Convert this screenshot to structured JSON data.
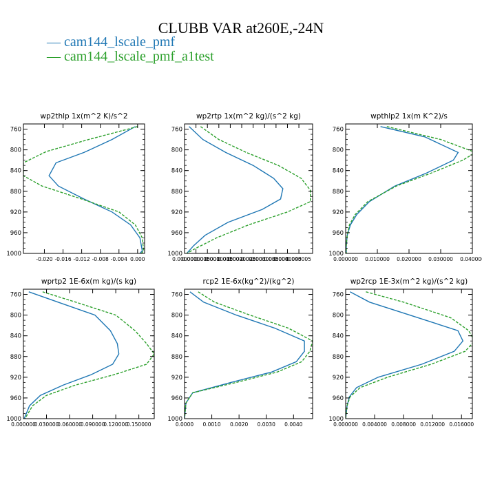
{
  "figure": {
    "title": "CLUBB VAR at260E,-24N",
    "legend": [
      {
        "label": "cam144_lscale_pmf",
        "color": "#1f77b4"
      },
      {
        "label": "cam144_lscale_pmf_a1test",
        "color": "#2ca02c"
      }
    ]
  },
  "chart_data": [
    {
      "type": "line",
      "title": "wp2thlp   1x(m^2 K)/s^2",
      "xlim": [
        -0.0245,
        0.0015
      ],
      "ylim": [
        1000,
        750
      ],
      "yticks": [
        760,
        800,
        840,
        880,
        920,
        960,
        1000
      ],
      "xticks": [
        -0.02,
        -0.016,
        -0.012,
        -0.008,
        -0.004,
        0.0
      ],
      "xtick_labels": [
        "-0.020",
        "-0.016",
        "-0.012",
        "-0.008",
        "-0.004",
        "0.000"
      ],
      "series": [
        {
          "name": "cam144_lscale_pmf",
          "color": "#1f77b4",
          "dashed": false,
          "y": [
            755,
            780,
            805,
            825,
            850,
            870,
            895,
            920,
            945,
            970,
            995,
            1000
          ],
          "x": [
            -0.0005,
            -0.0055,
            -0.0115,
            -0.0175,
            -0.019,
            -0.017,
            -0.0115,
            -0.0055,
            -0.0015,
            0.0005,
            0.001,
            0.0005
          ]
        },
        {
          "name": "cam144_lscale_pmf_a1test",
          "color": "#2ca02c",
          "dashed": true,
          "y": [
            755,
            780,
            803,
            825,
            850,
            870,
            895,
            920,
            945,
            970,
            995,
            1000
          ],
          "x": [
            0.0,
            -0.0105,
            -0.0195,
            -0.0245,
            -0.0245,
            -0.0205,
            -0.012,
            -0.004,
            -0.0005,
            0.001,
            0.0013,
            0.0008
          ]
        }
      ]
    },
    {
      "type": "line",
      "title": "wp2rtp   1x(m^2 kg)/(s^2 kg)",
      "xlim": [
        0,
        5.6e-06
      ],
      "ylim": [
        1000,
        750
      ],
      "yticks": [
        760,
        800,
        840,
        880,
        920,
        960,
        1000
      ],
      "xticks": [
        0,
        5e-07,
        1e-06,
        1.5e-06,
        2e-06,
        2.5e-06,
        3e-06,
        3.5e-06,
        4e-06,
        4.5e-06,
        5e-06
      ],
      "xtick_labels": [
        "0.000000",
        "0.0000005",
        "0.000001",
        "0.0000015",
        "0.000002",
        "0.0000025",
        "0.000003",
        "0.0000035",
        "0.000004",
        "0.0000045",
        "0.000005"
      ],
      "series": [
        {
          "name": "cam144_lscale_pmf",
          "color": "#1f77b4",
          "dashed": false,
          "y": [
            755,
            780,
            805,
            830,
            855,
            875,
            895,
            915,
            940,
            965,
            985,
            1000
          ],
          "x": [
            2e-07,
            8e-07,
            1.8e-06,
            3e-06,
            3.9e-06,
            4.3e-06,
            4.2e-06,
            3.4e-06,
            1.9e-06,
            9e-07,
            4e-07,
            1e-07
          ]
        },
        {
          "name": "cam144_lscale_pmf_a1test",
          "color": "#2ca02c",
          "dashed": true,
          "y": [
            755,
            780,
            805,
            830,
            855,
            878,
            900,
            920,
            945,
            970,
            990,
            1000
          ],
          "x": [
            7e-07,
            1.5e-06,
            2.7e-06,
            4.1e-06,
            5.1e-06,
            5.5e-06,
            5.5e-06,
            4.5e-06,
            2.8e-06,
            1.4e-06,
            5e-07,
            1e-07
          ]
        }
      ]
    },
    {
      "type": "line",
      "title": "wpthlp2   1x(m K^2)/s",
      "xlim": [
        0,
        0.04
      ],
      "ylim": [
        1000,
        750
      ],
      "yticks": [
        760,
        800,
        840,
        880,
        920,
        960,
        1000
      ],
      "xticks": [
        0,
        0.01,
        0.02,
        0.03,
        0.04
      ],
      "xtick_labels": [
        "0.000000",
        "0.010000",
        "0.020000",
        "0.030000",
        "0.040000"
      ],
      "series": [
        {
          "name": "cam144_lscale_pmf",
          "color": "#1f77b4",
          "dashed": false,
          "y": [
            755,
            775,
            805,
            820,
            845,
            870,
            900,
            925,
            945,
            965,
            985,
            1000
          ],
          "x": [
            0.011,
            0.025,
            0.0355,
            0.034,
            0.0255,
            0.0155,
            0.0075,
            0.0035,
            0.0015,
            0.0005,
            0.0002,
            0.0002
          ]
        },
        {
          "name": "cam144_lscale_pmf_a1test",
          "color": "#2ca02c",
          "dashed": true,
          "y": [
            755,
            780,
            805,
            820,
            845,
            870,
            900,
            925,
            945,
            965,
            985,
            1000
          ],
          "x": [
            0.013,
            0.03,
            0.041,
            0.037,
            0.027,
            0.016,
            0.007,
            0.003,
            0.0012,
            0.0005,
            0.0002,
            0.0002
          ]
        }
      ]
    },
    {
      "type": "line",
      "title": "wprtp2   1E-6x(m kg)/(s kg)",
      "xlim": [
        0,
        0.17
      ],
      "ylim": [
        1000,
        750
      ],
      "yticks": [
        760,
        800,
        840,
        880,
        920,
        960,
        1000
      ],
      "xticks": [
        0,
        0.03,
        0.06,
        0.09,
        0.12,
        0.15
      ],
      "xtick_labels": [
        "0.000000",
        "0.030000",
        "0.060000",
        "0.090000",
        "0.120000",
        "0.150000"
      ],
      "series": [
        {
          "name": "cam144_lscale_pmf",
          "color": "#1f77b4",
          "dashed": false,
          "y": [
            755,
            775,
            800,
            830,
            855,
            875,
            895,
            915,
            935,
            955,
            975,
            1000
          ],
          "x": [
            0.007,
            0.045,
            0.093,
            0.113,
            0.122,
            0.124,
            0.116,
            0.088,
            0.052,
            0.022,
            0.008,
            0.001
          ]
        },
        {
          "name": "cam144_lscale_pmf_a1test",
          "color": "#2ca02c",
          "dashed": true,
          "y": [
            755,
            775,
            800,
            830,
            855,
            875,
            895,
            915,
            935,
            955,
            975,
            1000
          ],
          "x": [
            0.025,
            0.068,
            0.12,
            0.145,
            0.16,
            0.17,
            0.16,
            0.118,
            0.068,
            0.03,
            0.012,
            0.002
          ]
        }
      ]
    },
    {
      "type": "line",
      "title": "rcp2   1E-6x(kg^2)/(kg^2)",
      "xlim": [
        0,
        0.0047
      ],
      "ylim": [
        1000,
        750
      ],
      "yticks": [
        760,
        800,
        840,
        880,
        920,
        960,
        1000
      ],
      "xticks": [
        0,
        0.001,
        0.002,
        0.003,
        0.004
      ],
      "xtick_labels": [
        "0.0000",
        "0.0010",
        "0.0020",
        "0.0030",
        "0.0040"
      ],
      "series": [
        {
          "name": "cam144_lscale_pmf",
          "color": "#1f77b4",
          "dashed": false,
          "y": [
            755,
            775,
            800,
            825,
            850,
            870,
            890,
            910,
            930,
            950,
            970,
            1000
          ],
          "x": [
            0.0002,
            0.0007,
            0.0019,
            0.0033,
            0.0044,
            0.0044,
            0.0041,
            0.0032,
            0.0017,
            0.0003,
            5e-05,
            0.0
          ]
        },
        {
          "name": "cam144_lscale_pmf_a1test",
          "color": "#2ca02c",
          "dashed": true,
          "y": [
            755,
            775,
            800,
            825,
            850,
            870,
            890,
            910,
            930,
            950,
            970,
            1000
          ],
          "x": [
            0.0005,
            0.0011,
            0.0024,
            0.0038,
            0.0047,
            0.0046,
            0.0043,
            0.0034,
            0.0019,
            0.0003,
            5e-05,
            0.0
          ]
        }
      ]
    },
    {
      "type": "line",
      "title": "wp2rcp   1E-3x(m^2 kg)/(s^2 kg)",
      "xlim": [
        0,
        0.0175
      ],
      "ylim": [
        1000,
        750
      ],
      "yticks": [
        760,
        800,
        840,
        880,
        920,
        960,
        1000
      ],
      "xticks": [
        0,
        0.004,
        0.008,
        0.012,
        0.016
      ],
      "xtick_labels": [
        "0.000000",
        "0.004000",
        "0.008000",
        "0.012000",
        "0.016000"
      ],
      "series": [
        {
          "name": "cam144_lscale_pmf",
          "color": "#1f77b4",
          "dashed": false,
          "y": [
            755,
            775,
            805,
            830,
            850,
            870,
            895,
            920,
            940,
            958,
            975,
            1000
          ],
          "x": [
            0.0006,
            0.0033,
            0.01,
            0.0155,
            0.0162,
            0.015,
            0.0105,
            0.0045,
            0.0015,
            0.0005,
            0.0002,
            0.0
          ]
        },
        {
          "name": "cam144_lscale_pmf_a1test",
          "color": "#2ca02c",
          "dashed": true,
          "y": [
            755,
            775,
            805,
            830,
            850,
            870,
            895,
            920,
            940,
            958,
            975,
            1000
          ],
          "x": [
            0.0028,
            0.008,
            0.0145,
            0.017,
            0.0178,
            0.0165,
            0.0118,
            0.0058,
            0.002,
            0.0006,
            0.0002,
            0.0
          ]
        }
      ]
    }
  ]
}
